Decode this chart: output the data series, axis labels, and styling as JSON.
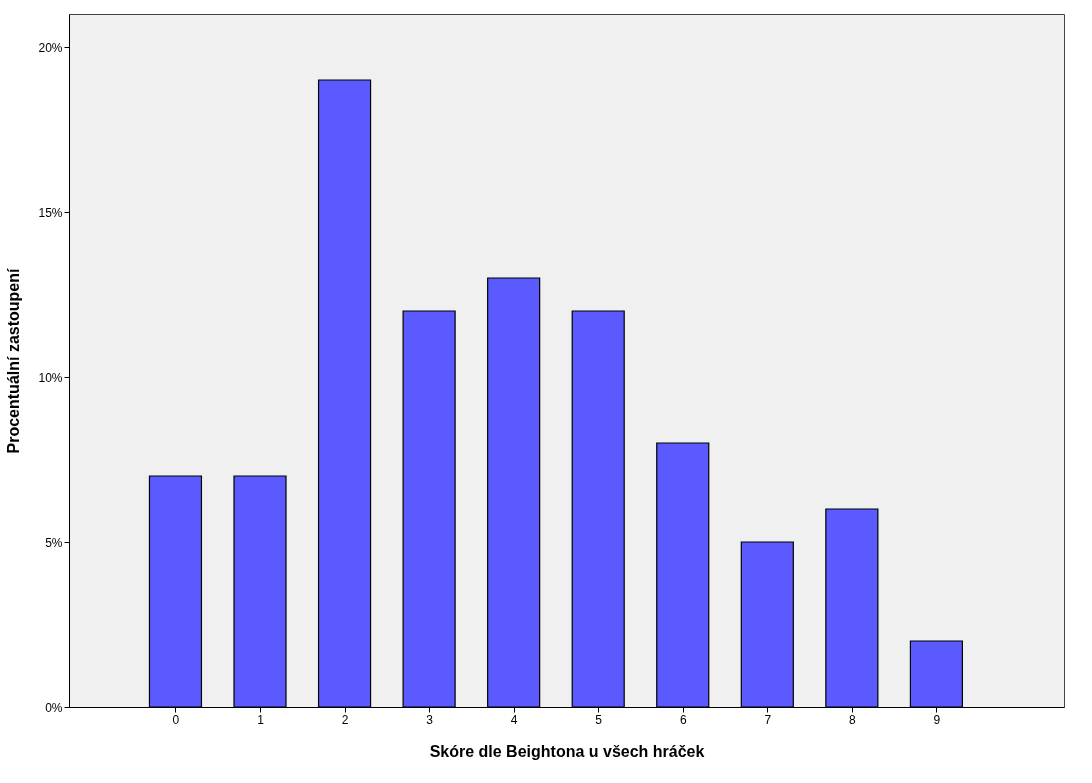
{
  "chart_data": {
    "type": "bar",
    "xlabel": "Skóre dle Beightona u všech hráček",
    "ylabel": "Procentuální zastoupení",
    "categories": [
      "0",
      "1",
      "2",
      "3",
      "4",
      "5",
      "6",
      "7",
      "8",
      "9"
    ],
    "values": [
      7,
      7,
      19,
      12,
      13,
      12,
      8,
      5,
      6,
      2
    ],
    "color": "#5a5aff",
    "ylim": [
      0,
      21
    ],
    "yticks": [
      {
        "value": 0,
        "label": "0%"
      },
      {
        "value": 5,
        "label": "5%"
      },
      {
        "value": 10,
        "label": "10%"
      },
      {
        "value": 15,
        "label": "15%"
      },
      {
        "value": 20,
        "label": "20%"
      }
    ],
    "grid": false
  }
}
